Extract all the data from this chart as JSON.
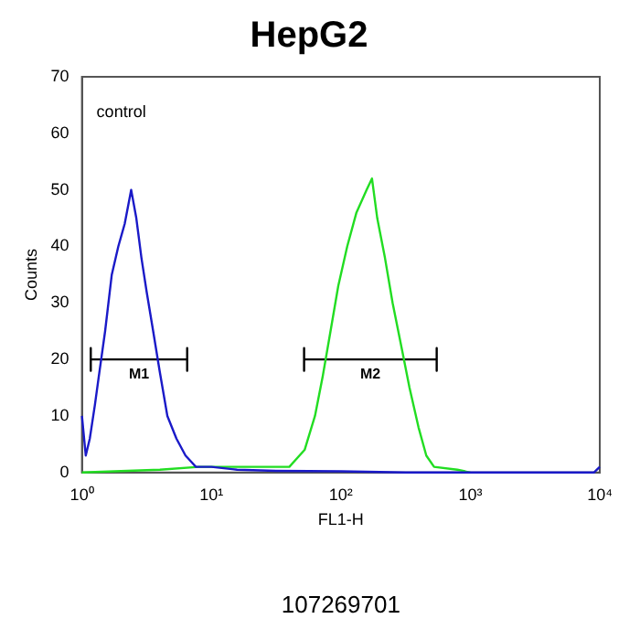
{
  "chart_data": {
    "type": "line",
    "title": "HepG2",
    "xlabel": "FL1-H",
    "ylabel": "Counts",
    "log": "x",
    "xlim": [
      1,
      10000
    ],
    "xticks": [
      {
        "value": 1,
        "label": "10⁰"
      },
      {
        "value": 10,
        "label": "10¹"
      },
      {
        "value": 100,
        "label": "10²"
      },
      {
        "value": 1000,
        "label": "10³"
      },
      {
        "value": 10000,
        "label": "10⁴"
      }
    ],
    "ylim": [
      0,
      70
    ],
    "yticks": [
      0,
      10,
      20,
      30,
      40,
      50,
      60,
      70
    ],
    "grid": false,
    "legend": false,
    "marker": "none",
    "line_style": "solid",
    "series": [
      {
        "color": "#1a1ac8",
        "x": [
          1,
          1.07,
          1.15,
          1.26,
          1.35,
          1.51,
          1.7,
          1.91,
          2.14,
          2.4,
          2.63,
          2.88,
          3.16,
          3.55,
          3.98,
          4.57,
          5.37,
          6.31,
          7.59,
          10,
          15.8,
          31.6,
          100,
          316,
          9000,
          10000
        ],
        "values": [
          10,
          3,
          6,
          12,
          17,
          25,
          35,
          40,
          44,
          50,
          45,
          38,
          32,
          25,
          18,
          10,
          6,
          3,
          1,
          1,
          0.5,
          0.3,
          0.2,
          0,
          0,
          1
        ]
      },
      {
        "color": "#22dd22",
        "x": [
          1,
          4,
          8,
          16,
          40,
          52.5,
          63.1,
          72.4,
          83.2,
          95.5,
          112,
          132,
          158,
          174,
          191,
          219,
          251,
          295,
          339,
          398,
          457,
          525,
          794,
          1000
        ],
        "values": [
          0,
          0.5,
          1,
          1,
          1,
          4,
          10,
          17,
          25,
          33,
          40,
          46,
          50,
          52,
          45,
          38,
          30,
          22,
          15,
          8,
          3,
          1,
          0.5,
          0
        ]
      },
      {
        "type": "line",
        "color": "#000000",
        "x": [
          1.17,
          1.17,
          1.17,
          6.5,
          6.5,
          6.5
        ],
        "values": [
          22,
          18,
          20,
          20,
          22,
          18
        ]
      },
      {
        "type": "line",
        "color": "#000000",
        "x": [
          52,
          52,
          52,
          550,
          550,
          550
        ],
        "values": [
          22,
          18,
          20,
          20,
          22,
          18
        ]
      }
    ],
    "annotations": [
      "control",
      "107269701",
      {
        "text": "M1",
        "x": 2.76,
        "y": 20
      },
      {
        "text": "M2",
        "x": 169,
        "y": 20
      }
    ]
  }
}
